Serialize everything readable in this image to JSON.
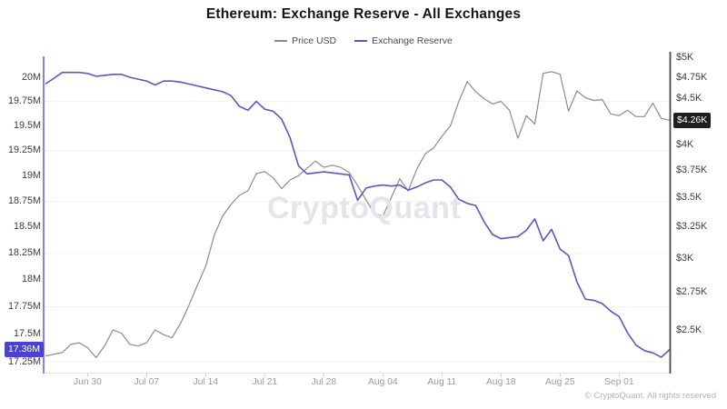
{
  "watermark": "CryptoQuant",
  "footer": "© CryptoQuant. All rights reserved",
  "chart_data": {
    "type": "line",
    "title": "Ethereum: Exchange Reserve - All Exchanges",
    "x_tick_labels": [
      "Jun 30",
      "Jul 07",
      "Jul 14",
      "Jul 21",
      "Jul 28",
      "Aug 04",
      "Aug 11",
      "Aug 18",
      "Aug 25",
      "Sep 01"
    ],
    "x_tick_indices": [
      5,
      12,
      19,
      26,
      33,
      40,
      47,
      54,
      61,
      68
    ],
    "x_range_dates": "daily points, Jun 25 to Sep 07",
    "legend_position": "top-center",
    "grid": "faint horizontal",
    "left_axis": {
      "scale": "log",
      "side": "left",
      "axis_color": "#7e76cd",
      "ticks": [
        {
          "value": 20,
          "label": "20M"
        },
        {
          "value": 19.75,
          "label": "19.75M"
        },
        {
          "value": 19.5,
          "label": "19.5M"
        },
        {
          "value": 19.25,
          "label": "19.25M"
        },
        {
          "value": 19,
          "label": "19M"
        },
        {
          "value": 18.75,
          "label": "18.75M"
        },
        {
          "value": 18.5,
          "label": "18.5M"
        },
        {
          "value": 18.25,
          "label": "18.25M"
        },
        {
          "value": 18,
          "label": "18M"
        },
        {
          "value": 17.75,
          "label": "17.75M"
        },
        {
          "value": 17.5,
          "label": "17.5M"
        },
        {
          "value": 17.25,
          "label": "17.25M"
        }
      ]
    },
    "right_axis": {
      "scale": "log",
      "side": "right",
      "axis_color": "#4a4a4a",
      "ticks": [
        {
          "value": 5,
          "label": "$5K"
        },
        {
          "value": 4.75,
          "label": "$4.75K"
        },
        {
          "value": 4.5,
          "label": "$4.5K"
        },
        {
          "value": 4,
          "label": "$4K"
        },
        {
          "value": 3.75,
          "label": "$3.75K"
        },
        {
          "value": 3.5,
          "label": "$3.5K"
        },
        {
          "value": 3.25,
          "label": "$3.25K"
        },
        {
          "value": 3,
          "label": "$3K"
        },
        {
          "value": 2.75,
          "label": "$2.75K"
        },
        {
          "value": 2.5,
          "label": "$2.5K"
        }
      ]
    },
    "gridlines_left_values": [
      19.75,
      19.25,
      18.75,
      18.25,
      17.75,
      17.25
    ],
    "series": [
      {
        "name": "Price USD",
        "axis": "right",
        "unit": "thousand USD",
        "color": "#8c8c8c",
        "last_label": "$4.26K",
        "last_label_bg": "#1f1f1f",
        "values": [
          2.34,
          2.35,
          2.36,
          2.41,
          2.42,
          2.39,
          2.33,
          2.4,
          2.5,
          2.48,
          2.41,
          2.4,
          2.42,
          2.5,
          2.47,
          2.45,
          2.54,
          2.66,
          2.8,
          2.94,
          3.18,
          3.34,
          3.44,
          3.52,
          3.56,
          3.72,
          3.74,
          3.68,
          3.58,
          3.66,
          3.7,
          3.77,
          3.84,
          3.78,
          3.8,
          3.78,
          3.73,
          3.61,
          3.48,
          3.36,
          3.34,
          3.5,
          3.67,
          3.56,
          3.76,
          3.91,
          3.97,
          4.09,
          4.2,
          4.47,
          4.7,
          4.58,
          4.5,
          4.44,
          4.47,
          4.37,
          4.07,
          4.31,
          4.22,
          4.8,
          4.82,
          4.79,
          4.36,
          4.59,
          4.51,
          4.48,
          4.49,
          4.33,
          4.31,
          4.37,
          4.3,
          4.3,
          4.45,
          4.28,
          4.26
        ]
      },
      {
        "name": "Exchange Reserve",
        "axis": "left",
        "unit": "million ETH",
        "color": "#5f55c2",
        "last_label": "17.36M",
        "last_label_bg": "#4c40da",
        "values": [
          19.93,
          19.99,
          20.05,
          20.05,
          20.05,
          20.04,
          20.01,
          20.02,
          20.03,
          20.03,
          20.0,
          19.98,
          19.96,
          19.92,
          19.96,
          19.96,
          19.95,
          19.93,
          19.91,
          19.89,
          19.87,
          19.85,
          19.81,
          19.7,
          19.66,
          19.75,
          19.67,
          19.65,
          19.57,
          19.38,
          19.1,
          19.02,
          19.03,
          19.04,
          19.03,
          19.02,
          19.01,
          18.76,
          18.88,
          18.9,
          18.91,
          18.9,
          18.91,
          18.86,
          18.89,
          18.93,
          18.96,
          18.96,
          18.89,
          18.77,
          18.73,
          18.71,
          18.55,
          18.43,
          18.39,
          18.4,
          18.41,
          18.47,
          18.58,
          18.37,
          18.48,
          18.29,
          18.23,
          17.98,
          17.82,
          17.81,
          17.78,
          17.71,
          17.66,
          17.51,
          17.4,
          17.35,
          17.33,
          17.29,
          17.36
        ]
      }
    ]
  }
}
